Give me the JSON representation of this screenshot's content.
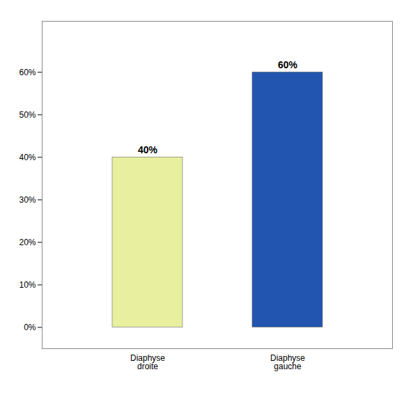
{
  "chart_data": {
    "type": "bar",
    "categories": [
      "Diaphyse\ndroite",
      "Diaphyse\ngauche"
    ],
    "values": [
      40,
      60
    ],
    "value_labels": [
      "40%",
      "60%"
    ],
    "data_labels": true,
    "colors": [
      "#e8ef9e",
      "#2255b0"
    ],
    "ylim": [
      -5,
      72
    ],
    "yticks": [
      {
        "value": 0,
        "label": "0%"
      },
      {
        "value": 10,
        "label": "10%"
      },
      {
        "value": 20,
        "label": "20%"
      },
      {
        "value": 30,
        "label": "30%"
      },
      {
        "value": 40,
        "label": "40%"
      },
      {
        "value": 50,
        "label": "50%"
      },
      {
        "value": 60,
        "label": "60%"
      }
    ],
    "grid": false
  }
}
